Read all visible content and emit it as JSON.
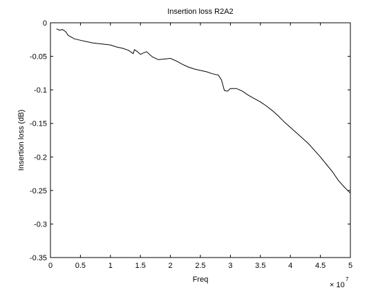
{
  "chart_data": {
    "type": "line",
    "title": "Insertion loss R2A2",
    "xlabel": "Freq",
    "ylabel": "Insertion loss (dB)",
    "x_multiplier_label": "× 10",
    "x_multiplier_exponent": "7",
    "xlim": [
      0,
      5
    ],
    "ylim": [
      -0.35,
      0
    ],
    "grid": false,
    "legend": "none",
    "line_color": "#000000",
    "x_ticks": [
      0,
      0.5,
      1,
      1.5,
      2,
      2.5,
      3,
      3.5,
      4,
      4.5,
      5
    ],
    "x_tick_labels": [
      "0",
      "0.5",
      "1",
      "1.5",
      "2",
      "2.5",
      "3",
      "3.5",
      "4",
      "4.5",
      "5"
    ],
    "y_ticks": [
      0,
      -0.05,
      -0.1,
      -0.15,
      -0.2,
      -0.25,
      -0.3,
      -0.35
    ],
    "y_tick_labels": [
      "0",
      "-0.05",
      "-0.1",
      "-0.15",
      "-0.2",
      "-0.25",
      "-0.3",
      "-0.35"
    ],
    "series": [
      {
        "x": [
          0.1,
          0.15,
          0.2,
          0.25,
          0.3,
          0.4,
          0.5,
          0.6,
          0.7,
          0.8,
          0.9,
          1.0,
          1.1,
          1.2,
          1.3,
          1.38,
          1.4,
          1.45,
          1.5,
          1.6,
          1.7,
          1.8,
          1.9,
          2.0,
          2.1,
          2.2,
          2.3,
          2.4,
          2.5,
          2.6,
          2.7,
          2.8,
          2.85,
          2.9,
          2.95,
          3.0,
          3.1,
          3.2,
          3.3,
          3.4,
          3.5,
          3.6,
          3.7,
          3.8,
          3.9,
          4.0,
          4.1,
          4.2,
          4.3,
          4.4,
          4.5,
          4.6,
          4.7,
          4.8,
          4.9,
          5.0
        ],
        "y": [
          -0.009,
          -0.011,
          -0.01,
          -0.013,
          -0.019,
          -0.024,
          -0.026,
          -0.028,
          -0.03,
          -0.031,
          -0.032,
          -0.033,
          -0.036,
          -0.038,
          -0.041,
          -0.046,
          -0.04,
          -0.043,
          -0.047,
          -0.043,
          -0.051,
          -0.055,
          -0.054,
          -0.053,
          -0.057,
          -0.062,
          -0.066,
          -0.069,
          -0.071,
          -0.073,
          -0.076,
          -0.078,
          -0.085,
          -0.101,
          -0.102,
          -0.098,
          -0.098,
          -0.102,
          -0.108,
          -0.113,
          -0.118,
          -0.124,
          -0.131,
          -0.139,
          -0.148,
          -0.156,
          -0.164,
          -0.172,
          -0.18,
          -0.19,
          -0.2,
          -0.211,
          -0.222,
          -0.235,
          -0.245,
          -0.254
        ]
      }
    ]
  }
}
